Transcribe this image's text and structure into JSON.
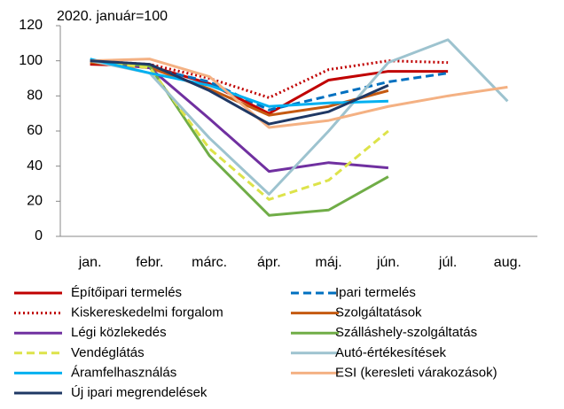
{
  "chart_data": {
    "type": "line",
    "title": "2020. január=100",
    "categories": [
      "jan.",
      "febr.",
      "márc.",
      "ápr.",
      "máj.",
      "jún.",
      "júl.",
      "aug."
    ],
    "ylim": [
      0,
      120
    ],
    "yticks": [
      0,
      20,
      40,
      60,
      80,
      100,
      120
    ],
    "grid": false,
    "legend": "bottom",
    "series": [
      {
        "name": "Építőipari termelés",
        "color": "#c00000",
        "dash": "solid",
        "values": [
          98,
          97,
          87,
          70,
          89,
          94,
          94,
          null
        ]
      },
      {
        "name": "Ipari termelés",
        "color": "#0070c0",
        "dash": "dashed",
        "values": [
          100,
          96,
          88,
          72,
          80,
          88,
          93,
          null
        ]
      },
      {
        "name": "Kiskereskedelmi forgalom",
        "color": "#c00000",
        "dash": "dotted",
        "values": [
          100,
          98,
          90,
          79,
          95,
          100,
          99,
          null
        ]
      },
      {
        "name": "Szolgáltatások",
        "color": "#c55a11",
        "dash": "solid",
        "values": [
          99,
          96,
          84,
          69,
          74,
          83,
          null,
          null
        ]
      },
      {
        "name": "Légi közlekedés",
        "color": "#7030a0",
        "dash": "solid",
        "values": [
          100,
          96,
          67,
          37,
          42,
          39,
          null,
          null
        ]
      },
      {
        "name": "Szálláshely-szolgáltatás",
        "color": "#70ad47",
        "dash": "solid",
        "values": [
          100,
          97,
          46,
          12,
          15,
          34,
          null,
          null
        ]
      },
      {
        "name": "Vendéglátás",
        "color": "#dde34a",
        "dash": "dashed",
        "values": [
          100,
          96,
          50,
          21,
          32,
          60,
          null,
          null
        ]
      },
      {
        "name": "Autó-értékesítések",
        "color": "#9dc3cf",
        "dash": "solid",
        "values": [
          100,
          93,
          56,
          24,
          60,
          99,
          112,
          77
        ]
      },
      {
        "name": "Áramfelhasználás",
        "color": "#00b0f0",
        "dash": "solid",
        "values": [
          101,
          93,
          86,
          74,
          76,
          77,
          null,
          null
        ]
      },
      {
        "name": "ESI (keresleti várakozások)",
        "color": "#f4b183",
        "dash": "solid",
        "values": [
          100,
          101,
          91,
          62,
          66,
          74,
          80,
          85
        ]
      },
      {
        "name": "Új ipari megrendelések",
        "color": "#1f3864",
        "dash": "solid",
        "values": [
          100,
          98,
          83,
          64,
          71,
          86,
          null,
          null
        ]
      }
    ]
  }
}
